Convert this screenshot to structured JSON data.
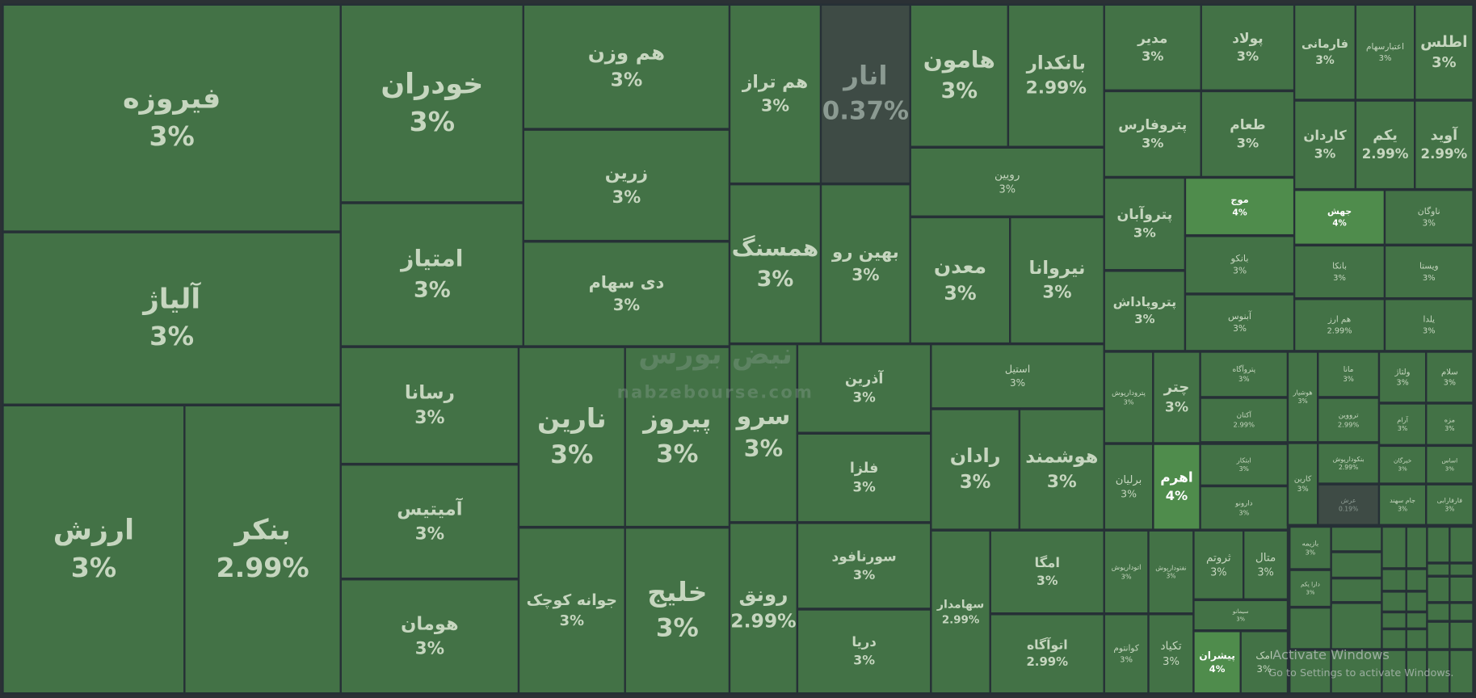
{
  "tile_color": "#437246",
  "border_color": "#263036",
  "tiles": [
    {
      "name": "فیروزه",
      "change": "3%"
    },
    {
      "name": "آلیاژ",
      "change": "3%"
    },
    {
      "name": "ارزش",
      "change": "3%"
    },
    {
      "name": "بنکر",
      "change": "2.99%"
    },
    {
      "name": "خودران",
      "change": "3%"
    },
    {
      "name": "امتیاز",
      "change": "3%"
    },
    {
      "name": "رسانا",
      "change": "3%"
    },
    {
      "name": "آمیتیس",
      "change": "3%"
    },
    {
      "name": "هومان",
      "change": "3%"
    },
    {
      "name": "هم وزن",
      "change": "3%"
    },
    {
      "name": "زرین",
      "change": "3%"
    },
    {
      "name": "دی سهام",
      "change": "3%"
    },
    {
      "name": "نارین",
      "change": "3%"
    },
    {
      "name": "پیروز",
      "change": "3%"
    },
    {
      "name": "جوانه کوچک",
      "change": "3%"
    },
    {
      "name": "خلیج",
      "change": "3%"
    },
    {
      "name": "هم تراز",
      "change": "3%"
    },
    {
      "name": "انار",
      "change": "0.37%",
      "color": "#3e4b45"
    },
    {
      "name": "همسنگ",
      "change": "3%"
    },
    {
      "name": "بهین رو",
      "change": "3%"
    },
    {
      "name": "سرو",
      "change": "3%"
    },
    {
      "name": "رونق",
      "change": "2.99%"
    },
    {
      "name": "آذرین",
      "change": "3%"
    },
    {
      "name": "فلزا",
      "change": "3%"
    },
    {
      "name": "سورنافود",
      "change": "3%"
    },
    {
      "name": "دریا",
      "change": "3%"
    },
    {
      "name": "هامون",
      "change": "3%"
    },
    {
      "name": "بانکدار",
      "change": "2.99%"
    },
    {
      "name": "رویین",
      "change": "3%"
    },
    {
      "name": "معدن",
      "change": "3%"
    },
    {
      "name": "نیروانا",
      "change": "3%"
    },
    {
      "name": "استیل",
      "change": "3%"
    },
    {
      "name": "رادان",
      "change": "3%"
    },
    {
      "name": "هوشمند",
      "change": "3%"
    },
    {
      "name": "سهامدار",
      "change": "2.99%"
    },
    {
      "name": "امگا",
      "change": "3%"
    },
    {
      "name": "اتوآگاه",
      "change": "2.99%"
    },
    {
      "name": "مدیر",
      "change": "3%"
    },
    {
      "name": "پولاد",
      "change": "3%"
    },
    {
      "name": "پتروفارس",
      "change": "3%"
    },
    {
      "name": "طعام",
      "change": "3%"
    },
    {
      "name": "پتروآبان",
      "change": "3%"
    },
    {
      "name": "پتروپاداش",
      "change": "3%"
    },
    {
      "name": "موج",
      "change": "4%",
      "color": "#4f8c4c"
    },
    {
      "name": "بانکو",
      "change": "3%"
    },
    {
      "name": "آبنوس",
      "change": "3%"
    },
    {
      "name": "فارمانی",
      "change": "3%"
    },
    {
      "name": "اعتبارسهام",
      "change": "3%"
    },
    {
      "name": "اطلس",
      "change": "3%"
    },
    {
      "name": "کاردان",
      "change": "3%"
    },
    {
      "name": "یکم",
      "change": "2.99%"
    },
    {
      "name": "آوید",
      "change": "2.99%"
    },
    {
      "name": "جهش",
      "change": "4%",
      "color": "#4f8c4c"
    },
    {
      "name": "ناوگان",
      "change": "3%"
    },
    {
      "name": "بانکا",
      "change": "3%"
    },
    {
      "name": "ویستا",
      "change": "3%"
    },
    {
      "name": "هم ارز",
      "change": "2.99%"
    },
    {
      "name": "یلدا",
      "change": "3%"
    },
    {
      "name": "پترودارپوش",
      "change": "3%"
    },
    {
      "name": "چتر",
      "change": "3%"
    },
    {
      "name": "پتروآگاه",
      "change": "3%"
    },
    {
      "name": "آکتان",
      "change": "2.99%"
    },
    {
      "name": "هوشیار",
      "change": "3%"
    },
    {
      "name": "مانا",
      "change": "3%"
    },
    {
      "name": "ترووین",
      "change": "2.99%"
    },
    {
      "name": "ولتاژ",
      "change": "3%"
    },
    {
      "name": "سلام",
      "change": "3%"
    },
    {
      "name": "آرام",
      "change": "3%"
    },
    {
      "name": "مزه",
      "change": "3%"
    },
    {
      "name": "برلیان",
      "change": "3%"
    },
    {
      "name": "اهرم",
      "change": "4%",
      "color": "#4f8c4c"
    },
    {
      "name": "ابتکار",
      "change": "3%"
    },
    {
      "name": "دارونو",
      "change": "3%"
    },
    {
      "name": "کارین",
      "change": "3%"
    },
    {
      "name": "بنکودارپوش",
      "change": "2.99%"
    },
    {
      "name": "عرش",
      "change": "0.19%",
      "color": "#3e4b45"
    },
    {
      "name": "خبرگان",
      "change": "3%"
    },
    {
      "name": "اساس",
      "change": "3%"
    },
    {
      "name": "جام سهند",
      "change": "3%"
    },
    {
      "name": "فارفارابی",
      "change": "3%"
    },
    {
      "name": "اتوداریوش",
      "change": "3%"
    },
    {
      "name": "نفتودارپوش",
      "change": "3%"
    },
    {
      "name": "ثروتم",
      "change": "3%"
    },
    {
      "name": "متال",
      "change": "3%"
    },
    {
      "name": "کوانتوم",
      "change": "3%"
    },
    {
      "name": "تکیاد",
      "change": "3%"
    },
    {
      "name": "سیمانو",
      "change": "3%"
    },
    {
      "name": "پیشران",
      "change": "4%",
      "color": "#4f8c4c"
    },
    {
      "name": "امک",
      "change": "3%"
    },
    {
      "name": "بازیمه",
      "change": "3%"
    },
    {
      "name": "دارا یکم",
      "change": "3%"
    }
  ],
  "watermark": {
    "brand": "نبض بورس",
    "site": "nabzebourse.com"
  },
  "overlay": {
    "title": "Activate Windows",
    "text": "Go to Settings to activate Windows."
  }
}
